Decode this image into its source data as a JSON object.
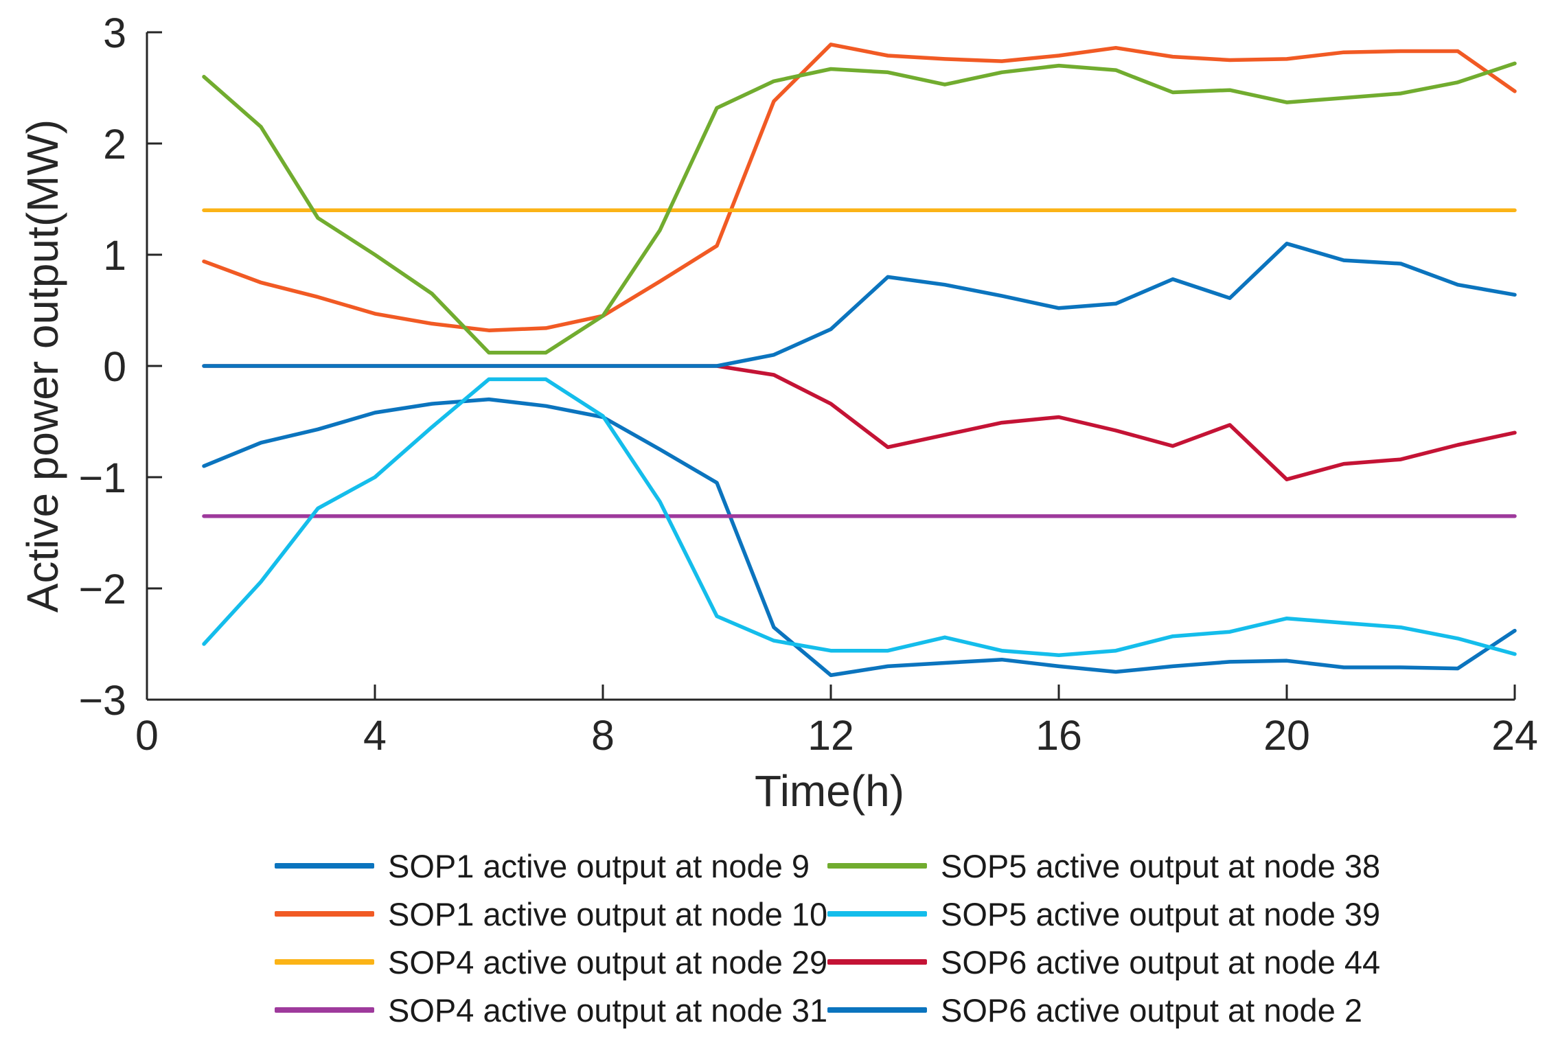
{
  "figure": {
    "background": "#ffffff",
    "axis_color": "#262626",
    "text_color": "#262626"
  },
  "chart_data": {
    "type": "line",
    "title": "",
    "xlabel": "Time(h)",
    "ylabel": "Active power output(MW)",
    "xlim": [
      0,
      24
    ],
    "ylim": [
      -3,
      3
    ],
    "grid": false,
    "legend_position": "below-two-columns",
    "x_tick_values": [
      0,
      4,
      8,
      12,
      16,
      20,
      24
    ],
    "x_tick_labels": [
      "0",
      "4",
      "8",
      "12",
      "16",
      "20",
      "24"
    ],
    "y_tick_values": [
      3,
      2,
      1,
      0,
      -1,
      -2,
      -3
    ],
    "y_tick_labels": [
      "3",
      "2",
      "1",
      "0",
      "−1",
      "−2",
      "−3"
    ],
    "x": [
      1,
      2,
      3,
      4,
      5,
      6,
      7,
      8,
      9,
      10,
      11,
      12,
      13,
      14,
      15,
      16,
      17,
      18,
      19,
      20,
      21,
      22,
      23,
      24
    ],
    "series": [
      {
        "id": "sop1-node9",
        "label": "SOP1 active output at node 9",
        "color": "#0b74be",
        "values": [
          -0.9,
          -0.69,
          -0.57,
          -0.42,
          -0.34,
          -0.3,
          -0.36,
          -0.46,
          -0.75,
          -1.05,
          -2.35,
          -2.78,
          -2.7,
          -2.67,
          -2.64,
          -2.7,
          -2.75,
          -2.7,
          -2.66,
          -2.65,
          -2.71,
          -2.71,
          -2.72,
          -2.38
        ]
      },
      {
        "id": "sop1-node10",
        "label": "SOP1 active output at node 10",
        "color": "#f15a24",
        "values": [
          0.94,
          0.75,
          0.62,
          0.47,
          0.38,
          0.32,
          0.34,
          0.45,
          0.76,
          1.08,
          2.38,
          2.89,
          2.79,
          2.76,
          2.74,
          2.79,
          2.86,
          2.78,
          2.75,
          2.76,
          2.82,
          2.83,
          2.83,
          2.47
        ]
      },
      {
        "id": "sop4-node29",
        "label": "SOP4 active output at node 29",
        "color": "#fbb316",
        "values": [
          1.4,
          1.4,
          1.4,
          1.4,
          1.4,
          1.4,
          1.4,
          1.4,
          1.4,
          1.4,
          1.4,
          1.4,
          1.4,
          1.4,
          1.4,
          1.4,
          1.4,
          1.4,
          1.4,
          1.4,
          1.4,
          1.4,
          1.4,
          1.4
        ]
      },
      {
        "id": "sop4-node31",
        "label": "SOP4 active output at node 31",
        "color": "#9e3a9c",
        "values": [
          -1.35,
          -1.35,
          -1.35,
          -1.35,
          -1.35,
          -1.35,
          -1.35,
          -1.35,
          -1.35,
          -1.35,
          -1.35,
          -1.35,
          -1.35,
          -1.35,
          -1.35,
          -1.35,
          -1.35,
          -1.35,
          -1.35,
          -1.35,
          -1.35,
          -1.35,
          -1.35,
          -1.35
        ]
      },
      {
        "id": "sop5-node38",
        "label": "SOP5 active output at node 38",
        "color": "#71ac2f",
        "values": [
          2.6,
          2.15,
          1.33,
          1.0,
          0.65,
          0.12,
          0.12,
          0.45,
          1.22,
          2.32,
          2.56,
          2.67,
          2.64,
          2.53,
          2.64,
          2.7,
          2.66,
          2.46,
          2.48,
          2.37,
          2.41,
          2.45,
          2.55,
          2.72
        ]
      },
      {
        "id": "sop5-node39",
        "label": "SOP5 active output at node 39",
        "color": "#14bdeb",
        "values": [
          -2.5,
          -1.94,
          -1.28,
          -1.0,
          -0.55,
          -0.12,
          -0.12,
          -0.45,
          -1.22,
          -2.25,
          -2.47,
          -2.56,
          -2.56,
          -2.44,
          -2.56,
          -2.6,
          -2.56,
          -2.43,
          -2.39,
          -2.27,
          -2.31,
          -2.35,
          -2.45,
          -2.59
        ]
      },
      {
        "id": "sop6-node44",
        "label": "SOP6 active output at node 44",
        "color": "#c41335",
        "values": [
          0.0,
          0.0,
          0.0,
          0.0,
          0.0,
          0.0,
          0.0,
          0.0,
          0.0,
          0.0,
          -0.08,
          -0.34,
          -0.73,
          -0.62,
          -0.51,
          -0.46,
          -0.58,
          -0.72,
          -0.53,
          -1.02,
          -0.88,
          -0.84,
          -0.71,
          -0.6
        ]
      },
      {
        "id": "sop6-node2",
        "label": "SOP6 active output at node 2",
        "color": "#0b74be",
        "values": [
          0.0,
          0.0,
          0.0,
          0.0,
          0.0,
          0.0,
          0.0,
          0.0,
          0.0,
          0.0,
          0.1,
          0.33,
          0.8,
          0.73,
          0.63,
          0.52,
          0.56,
          0.78,
          0.61,
          1.1,
          0.95,
          0.92,
          0.73,
          0.64
        ]
      }
    ]
  }
}
